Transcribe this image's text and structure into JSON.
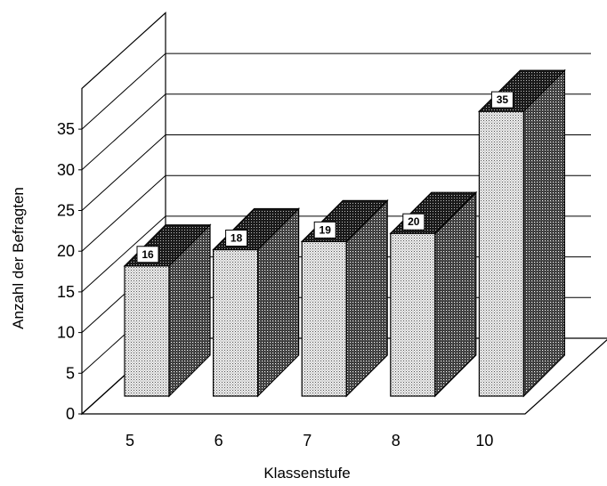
{
  "chart_data": {
    "type": "bar",
    "style": "3d",
    "categories": [
      "5",
      "6",
      "7",
      "8",
      "10"
    ],
    "values": [
      16,
      18,
      19,
      20,
      35
    ],
    "data_labels": [
      "16",
      "18",
      "19",
      "20",
      "35"
    ],
    "xlabel": "Klassenstufe",
    "ylabel": "Anzahl der Befragten",
    "ylim": [
      0,
      35
    ],
    "yticks": [
      "0",
      "5",
      "10",
      "15",
      "20",
      "25",
      "30",
      "35"
    ],
    "grid": true,
    "legend": "none",
    "colors": {
      "front": "#d9d9d9",
      "side": "#4d4d4d",
      "top": "#3a3a3a"
    }
  }
}
